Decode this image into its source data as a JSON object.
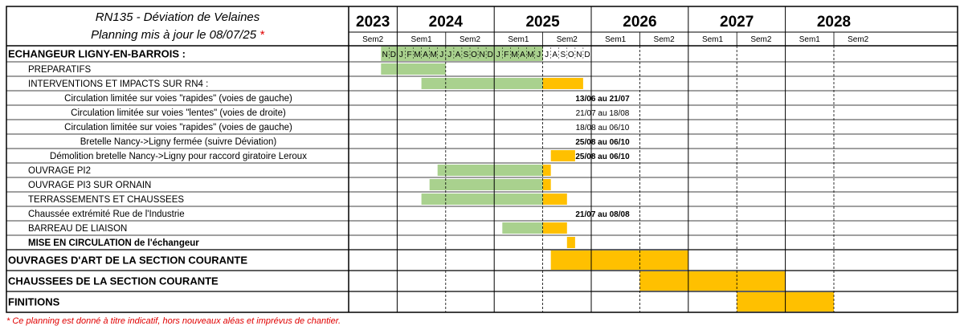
{
  "header": {
    "title": "RN135 - Déviation de Velaines",
    "subtitle": "Planning mis à jour le 08/07/25",
    "subtitle_mark": "*"
  },
  "footnote": "* Ce planning est donné à titre indicatif, hors nouveaux aléas et imprévus de chantier.",
  "colors": {
    "done": "#a9d18e",
    "planned": "#ffc000",
    "footnote": "#e00000",
    "grid": "#000000"
  },
  "years": [
    {
      "label": "2023",
      "semesters": [
        "Sem2"
      ]
    },
    {
      "label": "2024",
      "semesters": [
        "Sem1",
        "Sem2"
      ]
    },
    {
      "label": "2025",
      "semesters": [
        "Sem1",
        "Sem2"
      ]
    },
    {
      "label": "2026",
      "semesters": [
        "Sem1",
        "Sem2"
      ]
    },
    {
      "label": "2027",
      "semesters": [
        "Sem1",
        "Sem2"
      ]
    },
    {
      "label": "2028",
      "semesters": [
        "Sem1",
        "Sem2"
      ]
    }
  ],
  "month_letters": [
    "N",
    "D",
    "J",
    "F",
    "M",
    "A",
    "M",
    "J",
    "J",
    "A",
    "S",
    "O",
    "N",
    "D",
    "J",
    "F",
    "M",
    "A",
    "M",
    "J",
    "J",
    "A",
    "S",
    "O",
    "N",
    "D"
  ],
  "tasks": [
    {
      "label": "ECHANGEUR LIGNY-EN-BARROIS :",
      "bold": true,
      "indent": 0,
      "size": "md",
      "bars": []
    },
    {
      "label": "PREPARATIFS",
      "bold": false,
      "indent": 1,
      "size": "sm",
      "bars": [
        {
          "start": "2023-11",
          "end": "2024-06",
          "status": "done"
        }
      ]
    },
    {
      "label": "INTERVENTIONS ET IMPACTS SUR RN4 :",
      "bold": false,
      "indent": 1,
      "size": "sm",
      "bars": [
        {
          "start": "2024-04",
          "end": "2025-06",
          "status": "done"
        },
        {
          "start": "2025-07",
          "end": "2025-11",
          "status": "planned"
        }
      ]
    },
    {
      "label": "Circulation limitée sur voies \"rapides\" (voies de gauche)",
      "bold": false,
      "indent": 2,
      "size": "sm",
      "bars": [],
      "note": "13/06 au 21/07",
      "note_bold": true
    },
    {
      "label": "Circulation limitée sur voies \"lentes\" (voies de droite)",
      "bold": false,
      "indent": 2,
      "size": "sm",
      "bars": [],
      "note": "21/07 au 18/08",
      "note_bold": false
    },
    {
      "label": "Circulation limitée sur voies \"rapides\" (voies de gauche)",
      "bold": false,
      "indent": 2,
      "size": "sm",
      "bars": [],
      "note": "18/08 au 06/10",
      "note_bold": false
    },
    {
      "label": "Bretelle Nancy->Ligny fermée (suivre Déviation)",
      "bold": false,
      "indent": 2,
      "size": "sm",
      "bars": [],
      "note": "25/08 au 06/10",
      "note_bold": true
    },
    {
      "label": "Démolition bretelle Nancy->Ligny pour raccord giratoire Leroux",
      "bold": false,
      "indent": 2,
      "size": "sm",
      "bars": [
        {
          "start": "2025-08",
          "end": "2025-10",
          "status": "planned"
        }
      ],
      "note": "25/08 au 06/10",
      "note_bold": true
    },
    {
      "label": "OUVRAGE PI2",
      "bold": false,
      "indent": 1,
      "size": "sm",
      "bars": [
        {
          "start": "2024-06",
          "end": "2025-06",
          "status": "done"
        },
        {
          "start": "2025-07",
          "end": "2025-07",
          "status": "planned"
        }
      ]
    },
    {
      "label": "OUVRAGE PI3 SUR ORNAIN",
      "bold": false,
      "indent": 1,
      "size": "sm",
      "bars": [
        {
          "start": "2024-05",
          "end": "2025-06",
          "status": "done"
        },
        {
          "start": "2025-07",
          "end": "2025-07",
          "status": "planned"
        }
      ]
    },
    {
      "label": "TERRASSEMENTS ET CHAUSSEES",
      "bold": false,
      "indent": 1,
      "size": "sm",
      "bars": [
        {
          "start": "2024-04",
          "end": "2025-06",
          "status": "done"
        },
        {
          "start": "2025-07",
          "end": "2025-09",
          "status": "planned"
        }
      ]
    },
    {
      "label": "Chaussée extrémité Rue de l'Industrie",
      "bold": false,
      "indent": 1,
      "size": "sm",
      "bars": [],
      "note": "21/07 au 08/08",
      "note_bold": true
    },
    {
      "label": "BARREAU DE LIAISON",
      "bold": false,
      "indent": 1,
      "size": "sm",
      "bars": [
        {
          "start": "2025-02",
          "end": "2025-06",
          "status": "done"
        },
        {
          "start": "2025-07",
          "end": "2025-09",
          "status": "planned"
        }
      ]
    },
    {
      "label": "MISE EN CIRCULATION de l'échangeur",
      "bold": true,
      "indent": 1,
      "size": "sm",
      "bars": [
        {
          "start": "2025-10",
          "end": "2025-10",
          "status": "planned"
        }
      ]
    },
    {
      "label": "OUVRAGES D'ART DE LA SECTION COURANTE",
      "bold": true,
      "indent": 0,
      "size": "lg",
      "bars": [
        {
          "start": "2025-08",
          "end": "2026-12",
          "status": "planned"
        }
      ]
    },
    {
      "label": "CHAUSSEES DE LA SECTION COURANTE",
      "bold": true,
      "indent": 0,
      "size": "lg",
      "bars": [
        {
          "start": "2026-07",
          "end": "2027-12",
          "status": "planned"
        }
      ]
    },
    {
      "label": "FINITIONS",
      "bold": true,
      "indent": 0,
      "size": "lg",
      "bars": [
        {
          "start": "2027-07",
          "end": "2028-06",
          "status": "planned"
        }
      ]
    }
  ]
}
